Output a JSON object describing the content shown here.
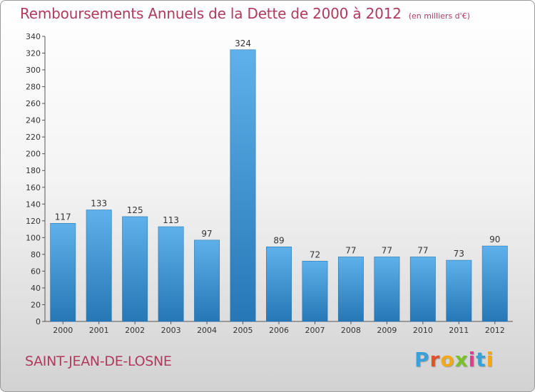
{
  "title": "Remboursements Annuels de la Dette de 2000 à 2012",
  "unit": "(en milliers d'€)",
  "city": "SAINT-JEAN-DE-LOSNE",
  "brand": {
    "letters": [
      "P",
      "r",
      "o",
      "x",
      "i",
      "t",
      "i"
    ],
    "colors": [
      "#3aa0d8",
      "#e4502a",
      "#f2a818",
      "#7bbf2a",
      "#e23d8d",
      "#3aa0d8",
      "#f2a818"
    ]
  },
  "colors": {
    "bar": "#4a9fde",
    "bar_dark": "#2878b8",
    "text": "#b03a5e"
  },
  "chart_data": {
    "type": "bar",
    "title": "Remboursements Annuels de la Dette de 2000 à 2012",
    "subtitle": "(en milliers d'€)",
    "categories": [
      "2000",
      "2001",
      "2002",
      "2003",
      "2004",
      "2005",
      "2006",
      "2007",
      "2008",
      "2009",
      "2010",
      "2011",
      "2012"
    ],
    "values": [
      117,
      133,
      125,
      113,
      97,
      324,
      89,
      72,
      77,
      77,
      77,
      73,
      90
    ],
    "ylim": [
      0,
      340
    ],
    "yticks": [
      0,
      20,
      40,
      60,
      80,
      100,
      120,
      140,
      160,
      180,
      200,
      220,
      240,
      260,
      280,
      300,
      320,
      340
    ],
    "grid": false,
    "xlabel": "",
    "ylabel": ""
  }
}
